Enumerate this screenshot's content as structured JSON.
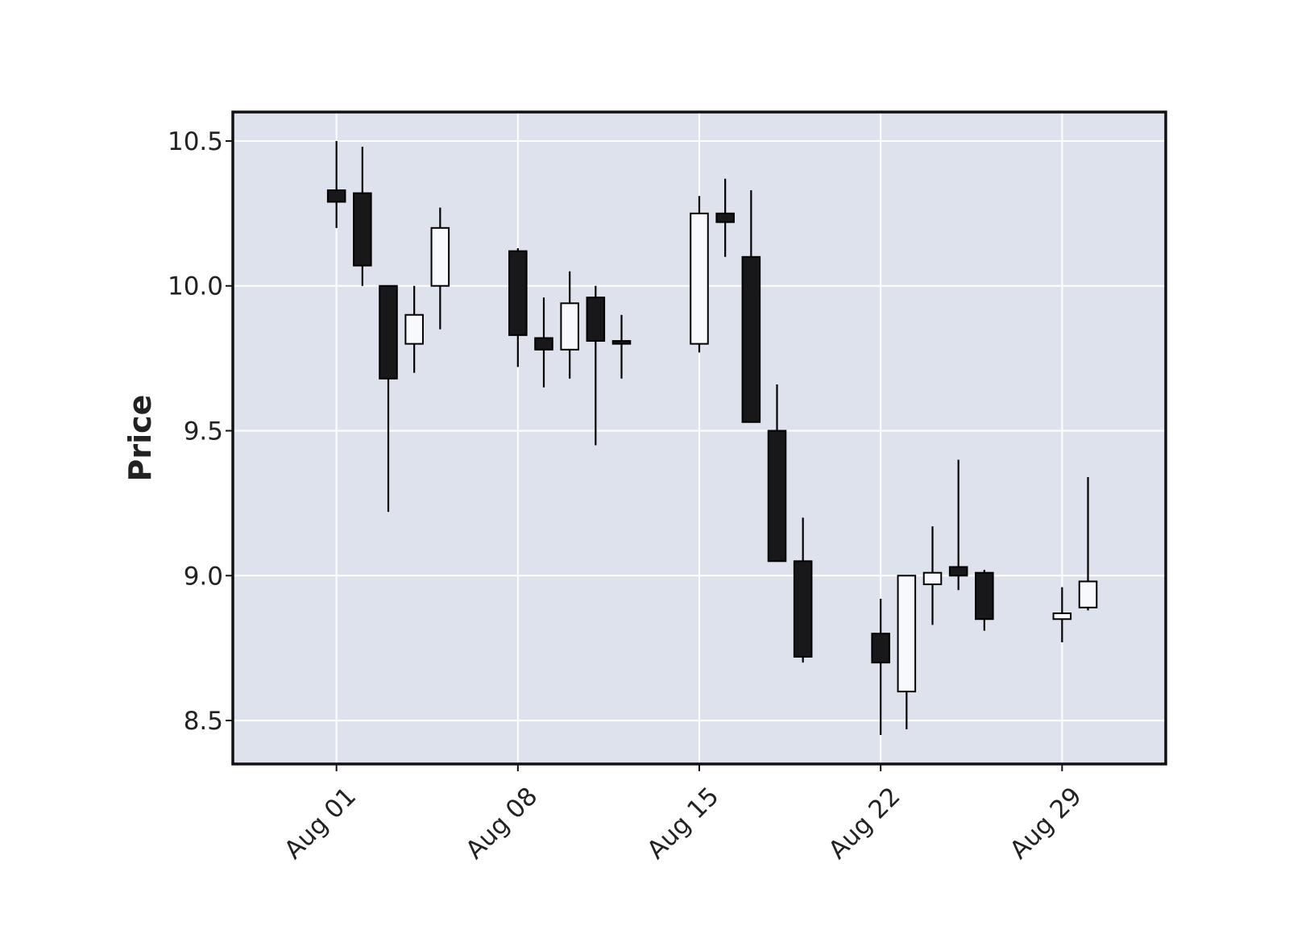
{
  "chart_data": {
    "type": "candlestick",
    "title": "",
    "xlabel": "",
    "ylabel": "Price",
    "ylim": [
      8.35,
      10.6
    ],
    "yticks": [
      8.5,
      9.0,
      9.5,
      10.0,
      10.5
    ],
    "ytick_labels": [
      "8.5",
      "9.0",
      "9.5",
      "10.0",
      "10.5"
    ],
    "xlim": [
      "2022-07-28",
      "2022-09-02"
    ],
    "xtick_dates": [
      "2022-08-01",
      "2022-08-08",
      "2022-08-15",
      "2022-08-22",
      "2022-08-29"
    ],
    "xtick_labels": [
      "Aug 01",
      "Aug 08",
      "Aug 15",
      "Aug 22",
      "Aug 29"
    ],
    "grid": true,
    "colors": {
      "background": "#dde2ed",
      "grid": "#ffffff",
      "up_body": "#f8f9fc",
      "down_body": "#18181a",
      "edge": "#000000"
    },
    "candles": [
      {
        "date": "2022-08-01",
        "open": 10.33,
        "high": 10.5,
        "low": 10.2,
        "close": 10.29
      },
      {
        "date": "2022-08-02",
        "open": 10.32,
        "high": 10.48,
        "low": 10.0,
        "close": 10.07
      },
      {
        "date": "2022-08-03",
        "open": 10.0,
        "high": 10.0,
        "low": 9.22,
        "close": 9.68
      },
      {
        "date": "2022-08-04",
        "open": 9.8,
        "high": 10.0,
        "low": 9.7,
        "close": 9.9
      },
      {
        "date": "2022-08-05",
        "open": 10.0,
        "high": 10.27,
        "low": 9.85,
        "close": 10.2
      },
      {
        "date": "2022-08-08",
        "open": 10.12,
        "high": 10.13,
        "low": 9.72,
        "close": 9.83
      },
      {
        "date": "2022-08-09",
        "open": 9.82,
        "high": 9.96,
        "low": 9.65,
        "close": 9.78
      },
      {
        "date": "2022-08-10",
        "open": 9.78,
        "high": 10.05,
        "low": 9.68,
        "close": 9.94
      },
      {
        "date": "2022-08-11",
        "open": 9.96,
        "high": 10.0,
        "low": 9.45,
        "close": 9.81
      },
      {
        "date": "2022-08-12",
        "open": 9.81,
        "high": 9.9,
        "low": 9.68,
        "close": 9.8
      },
      {
        "date": "2022-08-15",
        "open": 9.8,
        "high": 10.31,
        "low": 9.77,
        "close": 10.25
      },
      {
        "date": "2022-08-16",
        "open": 10.25,
        "high": 10.37,
        "low": 10.1,
        "close": 10.22
      },
      {
        "date": "2022-08-17",
        "open": 10.1,
        "high": 10.33,
        "low": 9.53,
        "close": 9.53
      },
      {
        "date": "2022-08-18",
        "open": 9.5,
        "high": 9.66,
        "low": 9.05,
        "close": 9.05
      },
      {
        "date": "2022-08-19",
        "open": 9.05,
        "high": 9.2,
        "low": 8.7,
        "close": 8.72
      },
      {
        "date": "2022-08-22",
        "open": 8.8,
        "high": 8.92,
        "low": 8.45,
        "close": 8.7
      },
      {
        "date": "2022-08-23",
        "open": 8.6,
        "high": 9.0,
        "low": 8.47,
        "close": 9.0
      },
      {
        "date": "2022-08-24",
        "open": 8.97,
        "high": 9.17,
        "low": 8.83,
        "close": 9.01
      },
      {
        "date": "2022-08-25",
        "open": 9.03,
        "high": 9.4,
        "low": 8.95,
        "close": 9.0
      },
      {
        "date": "2022-08-26",
        "open": 9.01,
        "high": 9.02,
        "low": 8.81,
        "close": 8.85
      },
      {
        "date": "2022-08-29",
        "open": 8.85,
        "high": 8.96,
        "low": 8.77,
        "close": 8.87
      },
      {
        "date": "2022-08-30",
        "open": 8.89,
        "high": 9.34,
        "low": 8.88,
        "close": 8.98
      }
    ]
  }
}
